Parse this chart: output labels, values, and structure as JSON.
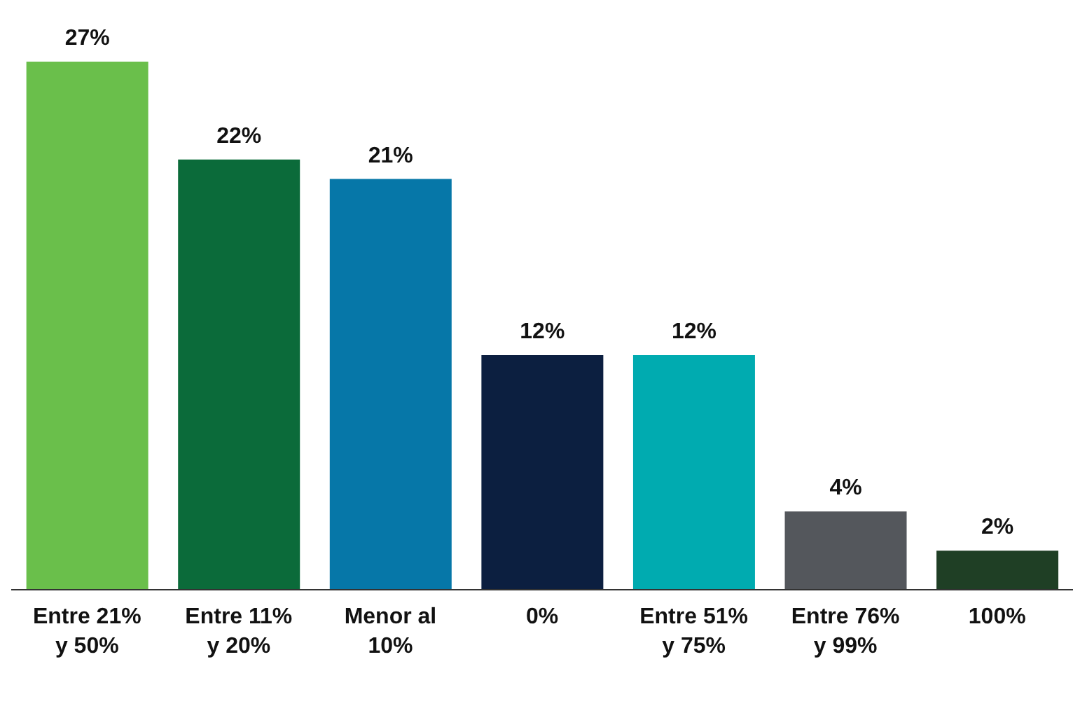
{
  "chart_data": {
    "type": "bar",
    "categories": [
      "Entre 21% y 50%",
      "Entre 11% y 20%",
      "Menor al 10%",
      "0%",
      "Entre 51% y 75%",
      "Entre 76% y 99%",
      "100%"
    ],
    "values": [
      27,
      22,
      21,
      12,
      12,
      4,
      2
    ],
    "colors": [
      "#6abf4b",
      "#0b6b3a",
      "#0677a8",
      "#0c1f40",
      "#00abb0",
      "#54575c",
      "#1f3f25"
    ],
    "value_labels": [
      "27%",
      "22%",
      "21%",
      "12%",
      "12%",
      "4%",
      "2%"
    ],
    "grid": false,
    "legend": false
  }
}
